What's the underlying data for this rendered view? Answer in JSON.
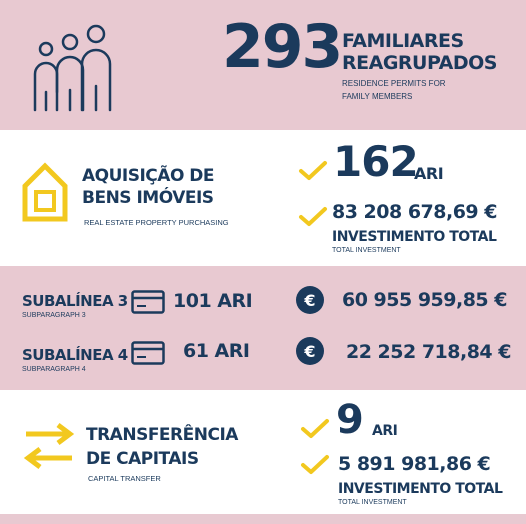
{
  "family": {
    "count": "293",
    "line1": "FAMILIARES",
    "line2": "REAGRUPADOS",
    "sub1": "RESIDENCE PERMITS FOR",
    "sub2": "FAMILY MEMBERS"
  },
  "realestate": {
    "title1": "AQUISIÇÃO DE",
    "title2": "BENS IMÓVEIS",
    "subtitle": "REAL ESTATE PROPERTY PURCHASING",
    "ari_count": "162",
    "ari_unit": "ARI",
    "amount": "83 208 678,69 €",
    "inv_label": "INVESTIMENTO TOTAL",
    "inv_sub": "TOTAL INVESTMENT"
  },
  "subparagraphs": [
    {
      "title": "SUBALÍNEA 3",
      "sub": "SUBPARAGRAPH 3",
      "ari": "101 ARI",
      "amount": "60 955 959,85 €"
    },
    {
      "title": "SUBALÍNEA 4",
      "sub": "SUBPARAGRAPH 4",
      "ari": "61 ARI",
      "amount": "22 252 718,84 €"
    }
  ],
  "capital": {
    "title1": "TRANSFERÊNCIA",
    "title2": "DE CAPITAIS",
    "subtitle": "CAPITAL TRANSFER",
    "ari_count": "9",
    "ari_unit": "ARI",
    "amount": "5 891 981,86 €",
    "inv_label": "INVESTIMENTO TOTAL",
    "inv_sub": "TOTAL INVESTMENT"
  },
  "colors": {
    "navy": "#1b3a5c",
    "pink": "#e8c9d1",
    "yellow": "#f2c81f"
  },
  "icons": [
    "family-icon",
    "house-icon",
    "check-icon",
    "card-icon",
    "euro-icon",
    "transfer-arrows-icon"
  ]
}
